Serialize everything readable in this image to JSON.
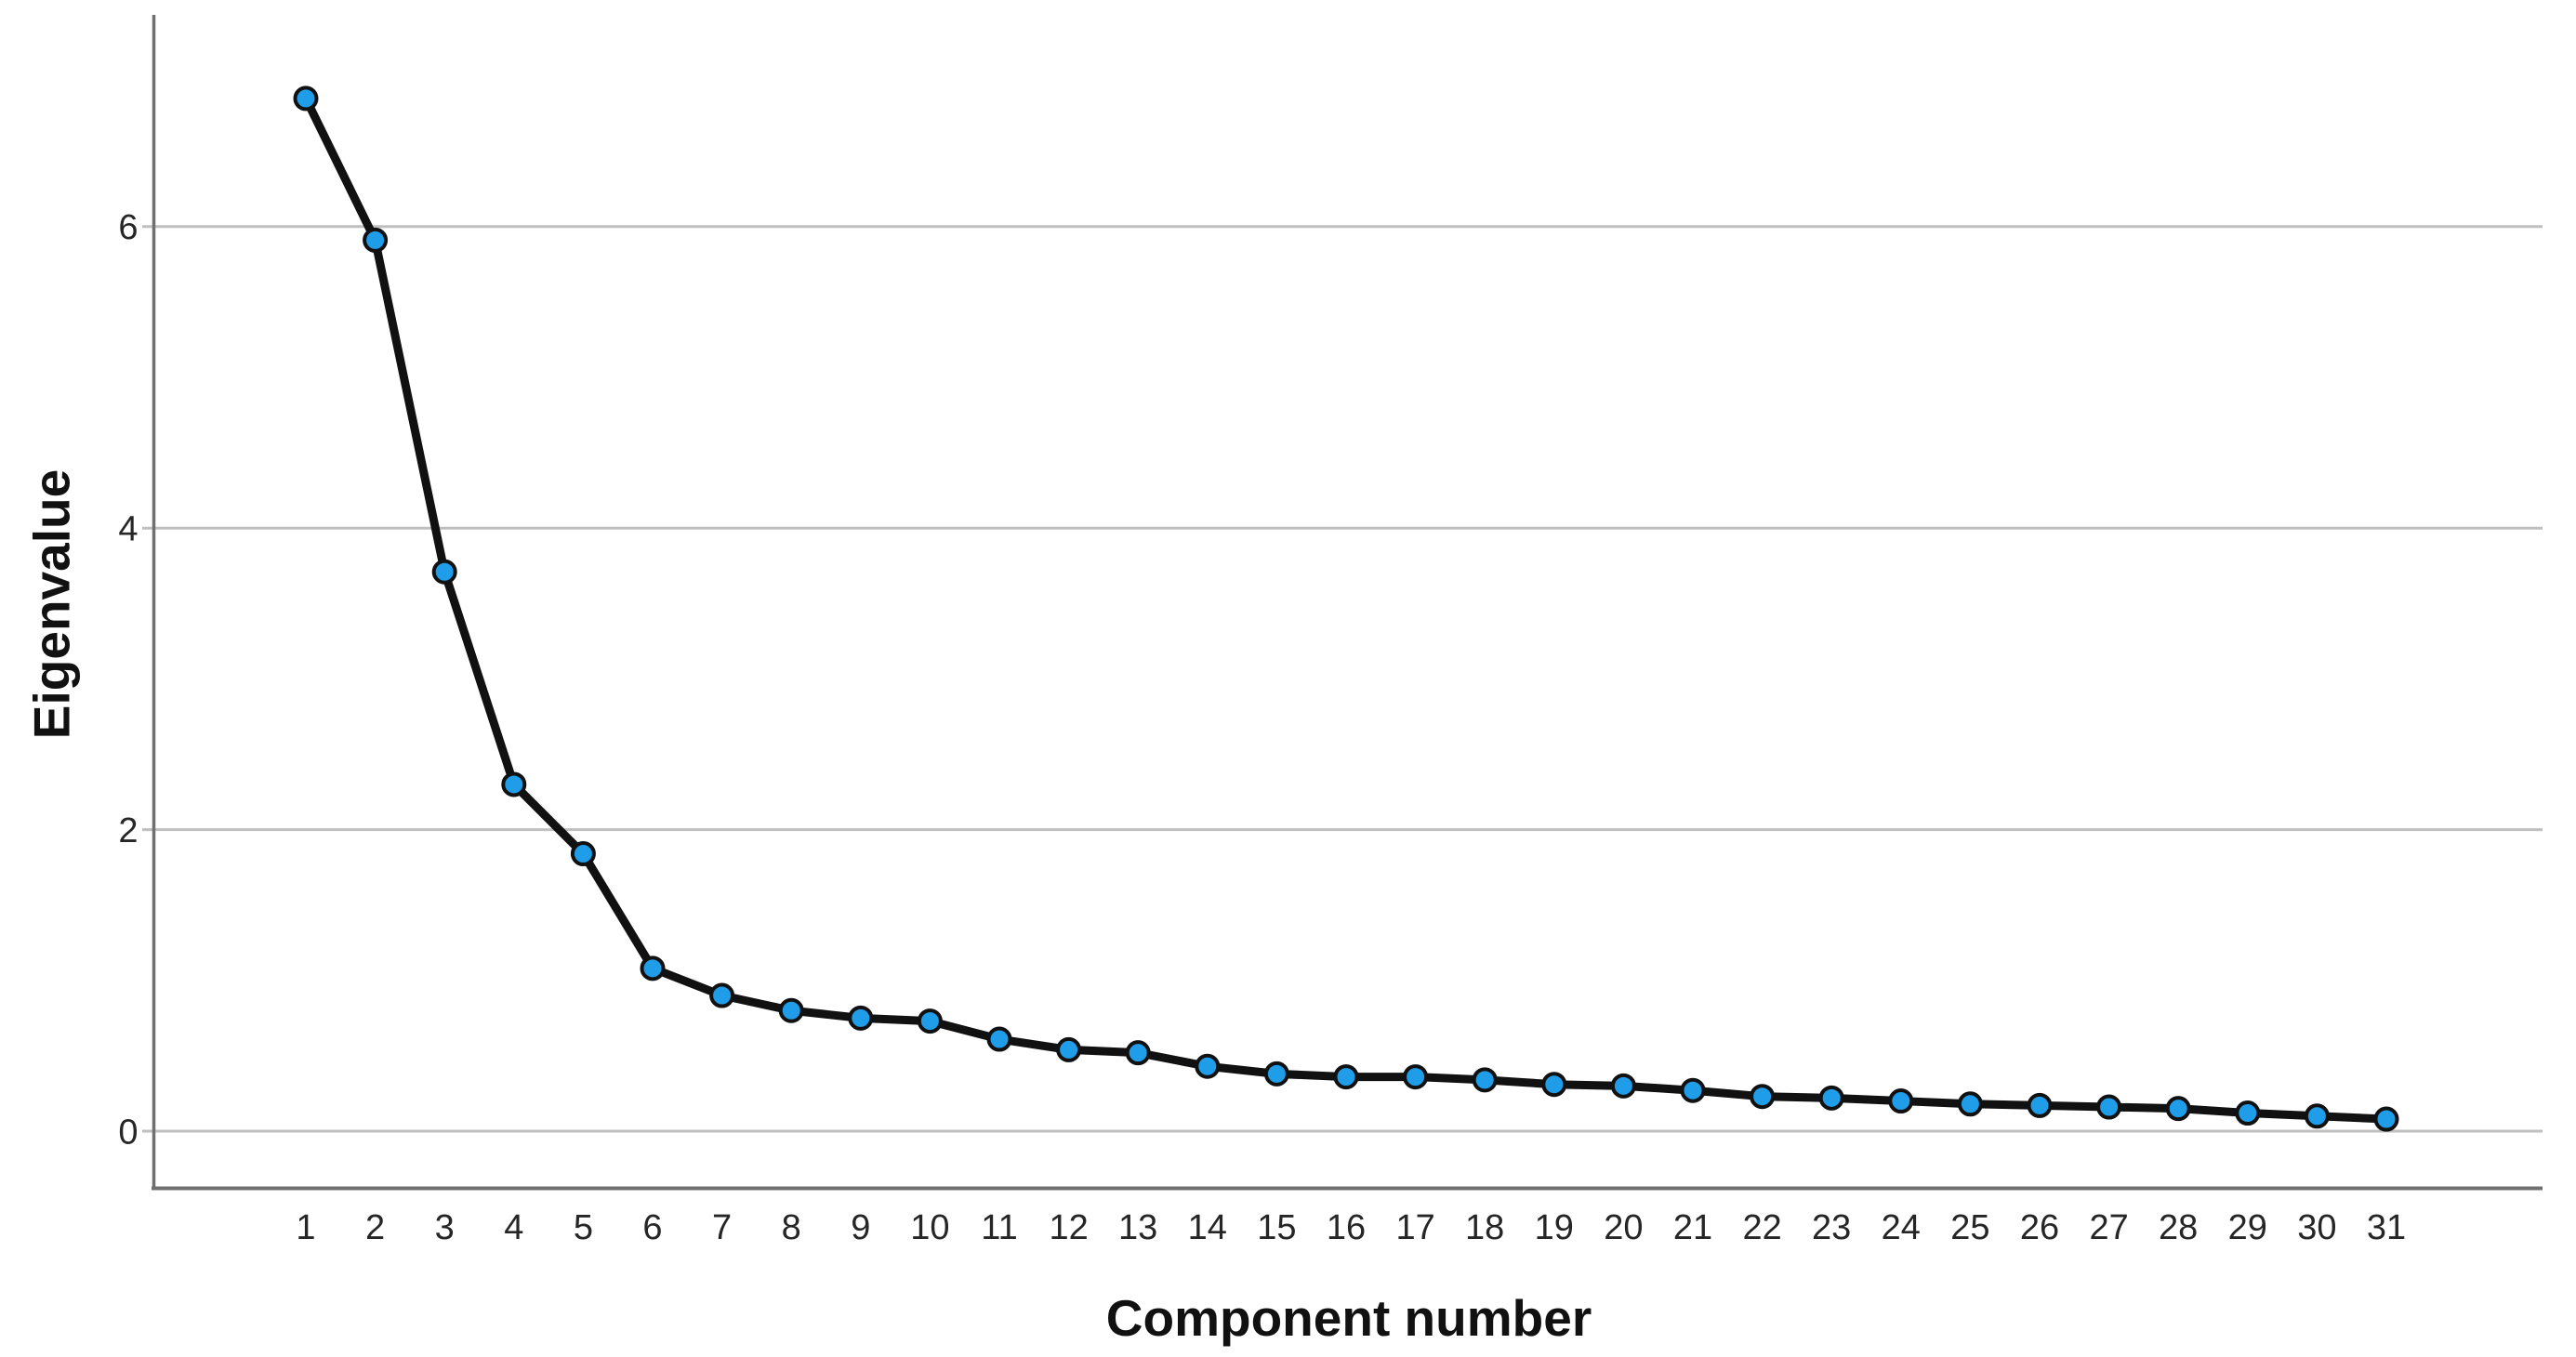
{
  "chart_data": {
    "type": "line",
    "title": "",
    "xlabel": "Component number",
    "ylabel": "Eigenvalue",
    "x": [
      1,
      2,
      3,
      4,
      5,
      6,
      7,
      8,
      9,
      10,
      11,
      12,
      13,
      14,
      15,
      16,
      17,
      18,
      19,
      20,
      21,
      22,
      23,
      24,
      25,
      26,
      27,
      28,
      29,
      30,
      31
    ],
    "series": [
      {
        "name": "Eigenvalue",
        "values": [
          6.85,
          5.91,
          3.71,
          2.3,
          1.84,
          1.08,
          0.9,
          0.8,
          0.75,
          0.73,
          0.61,
          0.54,
          0.52,
          0.43,
          0.38,
          0.36,
          0.36,
          0.34,
          0.31,
          0.3,
          0.27,
          0.23,
          0.22,
          0.2,
          0.18,
          0.17,
          0.16,
          0.15,
          0.12,
          0.1,
          0.08
        ]
      }
    ],
    "x_tick_labels": [
      "1",
      "2",
      "3",
      "4",
      "5",
      "6",
      "7",
      "8",
      "9",
      "10",
      "11",
      "12",
      "13",
      "14",
      "15",
      "16",
      "17",
      "18",
      "19",
      "20",
      "21",
      "22",
      "23",
      "24",
      "25",
      "26",
      "27",
      "28",
      "29",
      "30",
      "31"
    ],
    "y_ticks": [
      0,
      2,
      4,
      6
    ],
    "y_tick_labels": [
      "0",
      "2",
      "4",
      "6"
    ],
    "ylim": [
      -0.38,
      7.4
    ],
    "xlim": [
      0,
      33
    ],
    "grid": "horizontal",
    "legend": "none",
    "marker": "circle",
    "colors": {
      "marker_fill": "#1F9DE9",
      "marker_edge": "#111111",
      "line": "#111111",
      "axis": "#707070",
      "gridline": "#bfbfbf",
      "tick_text": "#262626",
      "title_text": "#111111",
      "background": "#ffffff"
    }
  }
}
